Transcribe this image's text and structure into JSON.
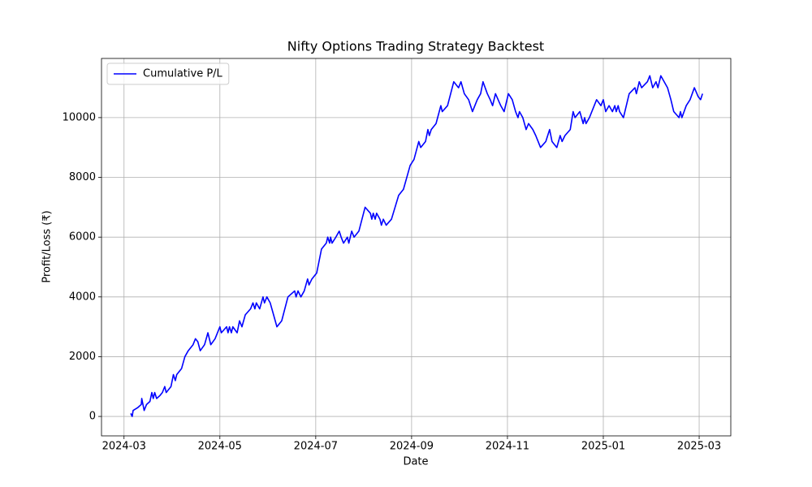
{
  "chart_data": {
    "type": "line",
    "title": "Nifty Options Trading Strategy Backtest",
    "x_label": "Date",
    "y_label": "Profit/Loss (₹)",
    "x": [
      0.14,
      0.17,
      0.19,
      0.29,
      0.36,
      0.37,
      0.42,
      0.47,
      0.54,
      0.58,
      0.61,
      0.64,
      0.68,
      0.75,
      0.8,
      0.85,
      0.88,
      0.98,
      1.03,
      1.07,
      1.1,
      1.2,
      1.27,
      1.34,
      1.44,
      1.49,
      1.54,
      1.59,
      1.68,
      1.75,
      1.81,
      1.9,
      1.95,
      2.0,
      2.03,
      2.14,
      2.17,
      2.2,
      2.24,
      2.27,
      2.36,
      2.41,
      2.46,
      2.53,
      2.64,
      2.69,
      2.73,
      2.76,
      2.83,
      2.9,
      2.93,
      2.98,
      3.05,
      3.12,
      3.19,
      3.29,
      3.42,
      3.56,
      3.59,
      3.63,
      3.69,
      3.76,
      3.83,
      3.86,
      3.92,
      4.02,
      4.12,
      4.22,
      4.25,
      4.29,
      4.31,
      4.34,
      4.42,
      4.49,
      4.53,
      4.58,
      4.66,
      4.69,
      4.75,
      4.8,
      4.9,
      5.03,
      5.14,
      5.17,
      5.2,
      5.24,
      5.27,
      5.34,
      5.37,
      5.41,
      5.47,
      5.58,
      5.73,
      5.83,
      5.97,
      6.05,
      6.15,
      6.19,
      6.29,
      6.34,
      6.37,
      6.41,
      6.51,
      6.61,
      6.64,
      6.75,
      6.88,
      6.98,
      7.03,
      7.1,
      7.19,
      7.27,
      7.37,
      7.44,
      7.49,
      7.58,
      7.64,
      7.69,
      7.75,
      7.86,
      7.93,
      8.02,
      8.1,
      8.17,
      8.22,
      8.25,
      8.32,
      8.39,
      8.44,
      8.53,
      8.59,
      8.64,
      8.69,
      8.8,
      8.88,
      8.93,
      9.03,
      9.1,
      9.14,
      9.2,
      9.31,
      9.37,
      9.41,
      9.51,
      9.58,
      9.61,
      9.64,
      9.71,
      9.86,
      9.95,
      10.0,
      10.05,
      10.12,
      10.19,
      10.24,
      10.27,
      10.31,
      10.34,
      10.42,
      10.54,
      10.66,
      10.69,
      10.75,
      10.8,
      10.92,
      10.97,
      11.03,
      11.1,
      11.14,
      11.2,
      11.27,
      11.34,
      11.41,
      11.47,
      11.58,
      11.61,
      11.64,
      11.73,
      11.81,
      11.9,
      11.98,
      12.03,
      12.07
    ],
    "series": [
      {
        "name": "Cumulative P/L",
        "color": "#0000ff",
        "values": [
          100,
          0,
          200,
          300,
          400,
          600,
          200,
          400,
          500,
          800,
          600,
          800,
          600,
          700,
          800,
          1000,
          800,
          1000,
          1400,
          1200,
          1400,
          1600,
          2000,
          2200,
          2400,
          2600,
          2500,
          2200,
          2400,
          2800,
          2400,
          2600,
          2800,
          3000,
          2800,
          3000,
          2800,
          3000,
          2800,
          3000,
          2800,
          3200,
          3000,
          3400,
          3600,
          3800,
          3600,
          3800,
          3600,
          4000,
          3800,
          4000,
          3800,
          3400,
          3000,
          3200,
          4000,
          4200,
          4000,
          4200,
          4000,
          4200,
          4600,
          4400,
          4600,
          4800,
          5600,
          5800,
          6000,
          5800,
          6000,
          5800,
          6000,
          6200,
          6000,
          5800,
          6000,
          5800,
          6200,
          6000,
          6200,
          7000,
          6800,
          6600,
          6800,
          6600,
          6800,
          6600,
          6400,
          6600,
          6400,
          6600,
          7400,
          7600,
          8400,
          8600,
          9200,
          9000,
          9200,
          9600,
          9400,
          9600,
          9800,
          10400,
          10200,
          10400,
          11200,
          11000,
          11200,
          10800,
          10600,
          10200,
          10600,
          10800,
          11200,
          10800,
          10600,
          10400,
          10800,
          10400,
          10200,
          10800,
          10600,
          10200,
          10000,
          10200,
          10000,
          9600,
          9800,
          9600,
          9400,
          9200,
          9000,
          9200,
          9600,
          9200,
          9000,
          9400,
          9200,
          9400,
          9600,
          10200,
          10000,
          10200,
          9800,
          10000,
          9800,
          10000,
          10600,
          10400,
          10600,
          10200,
          10400,
          10200,
          10400,
          10200,
          10400,
          10200,
          10000,
          10800,
          11000,
          10800,
          11200,
          11000,
          11200,
          11400,
          11000,
          11200,
          11000,
          11400,
          11200,
          11000,
          10600,
          10200,
          10000,
          10200,
          10000,
          10400,
          10600,
          11000,
          10700,
          10600,
          10800
        ]
      }
    ],
    "xlim": [
      -0.47,
      12.66
    ],
    "xticks": [
      {
        "value": 0,
        "label": "2024-03"
      },
      {
        "value": 2,
        "label": "2024-05"
      },
      {
        "value": 4,
        "label": "2024-07"
      },
      {
        "value": 6,
        "label": "2024-09"
      },
      {
        "value": 8,
        "label": "2024-11"
      },
      {
        "value": 10,
        "label": "2025-01"
      },
      {
        "value": 12,
        "label": "2025-03"
      }
    ],
    "ylim": [
      -650,
      11980
    ],
    "yticks": [
      0,
      2000,
      4000,
      6000,
      8000,
      10000
    ],
    "grid": true,
    "legend": "upper left"
  }
}
